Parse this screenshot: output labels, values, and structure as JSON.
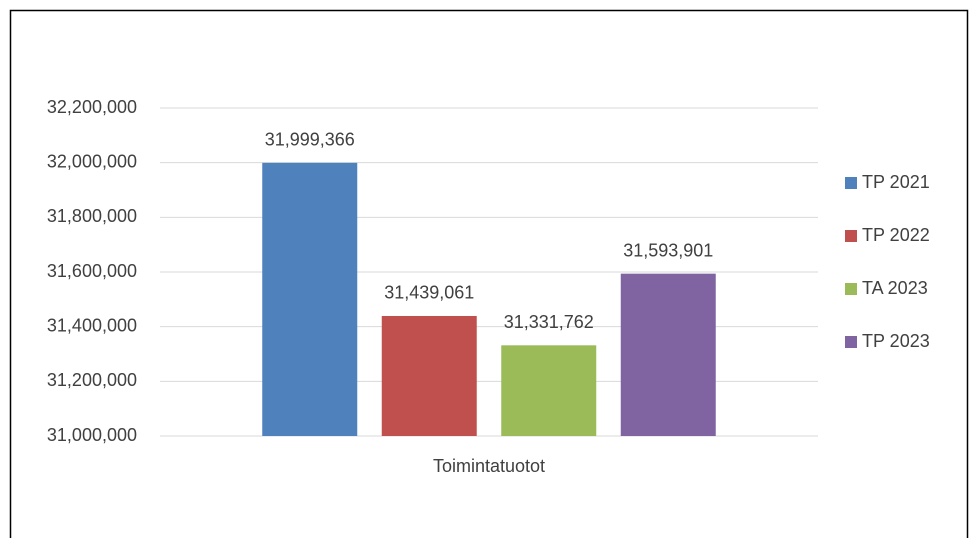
{
  "chart_data": {
    "type": "bar",
    "categories": [
      "Toimintatuotot"
    ],
    "series": [
      {
        "name": "TP 2021",
        "color": "#4f81bd",
        "values": [
          31999366
        ],
        "value_labels": [
          "31,999,366"
        ]
      },
      {
        "name": "TP 2022",
        "color": "#c0504d",
        "values": [
          31439061
        ],
        "value_labels": [
          "31,439,061"
        ]
      },
      {
        "name": "TA 2023",
        "color": "#9bbb59",
        "values": [
          31331762
        ],
        "value_labels": [
          "31,331,762"
        ]
      },
      {
        "name": "TP 2023",
        "color": "#8064a2",
        "values": [
          31593901
        ],
        "value_labels": [
          "31,593,901"
        ]
      }
    ],
    "ylim": [
      31000000,
      32200000
    ],
    "yticks": [
      {
        "value": 31000000,
        "label": "31,000,000"
      },
      {
        "value": 31200000,
        "label": "31,200,000"
      },
      {
        "value": 31400000,
        "label": "31,400,000"
      },
      {
        "value": 31600000,
        "label": "31,600,000"
      },
      {
        "value": 31800000,
        "label": "31,800,000"
      },
      {
        "value": 32000000,
        "label": "32,000,000"
      },
      {
        "value": 32200000,
        "label": "32,200,000"
      }
    ],
    "grid": true,
    "legend": "right"
  }
}
